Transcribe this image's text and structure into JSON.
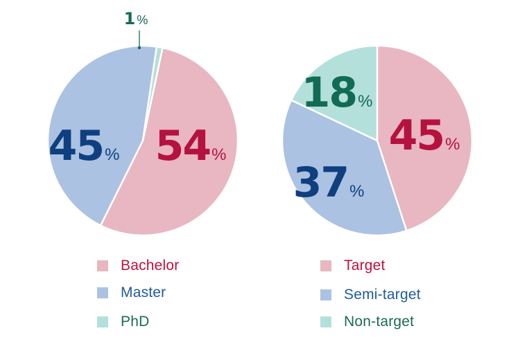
{
  "colors": {
    "pink": "#e8b7c1",
    "blue": "#abc2e2",
    "teal": "#b4e0dc",
    "text_red": "#b5123f",
    "text_navy": "#0f3f7f",
    "text_green": "#126b55",
    "legend_red": "#c0103a",
    "legend_blue": "#1f5a9a",
    "legend_green": "#1b6b52"
  },
  "chart_data": [
    {
      "type": "pie",
      "title": "",
      "categories": [
        "Bachelor",
        "Master",
        "PhD"
      ],
      "values": [
        54,
        45,
        1
      ],
      "labels": [
        "54",
        "45",
        "1"
      ],
      "unit": "%",
      "legend": [
        "Bachelor",
        "Master",
        "PhD"
      ]
    },
    {
      "type": "pie",
      "title": "",
      "categories": [
        "Target",
        "Semi-target",
        "Non-target"
      ],
      "values": [
        45,
        37,
        18
      ],
      "labels": [
        "45",
        "37",
        "18"
      ],
      "unit": "%",
      "legend": [
        "Target",
        "Semi-target",
        "Non-target"
      ]
    }
  ]
}
